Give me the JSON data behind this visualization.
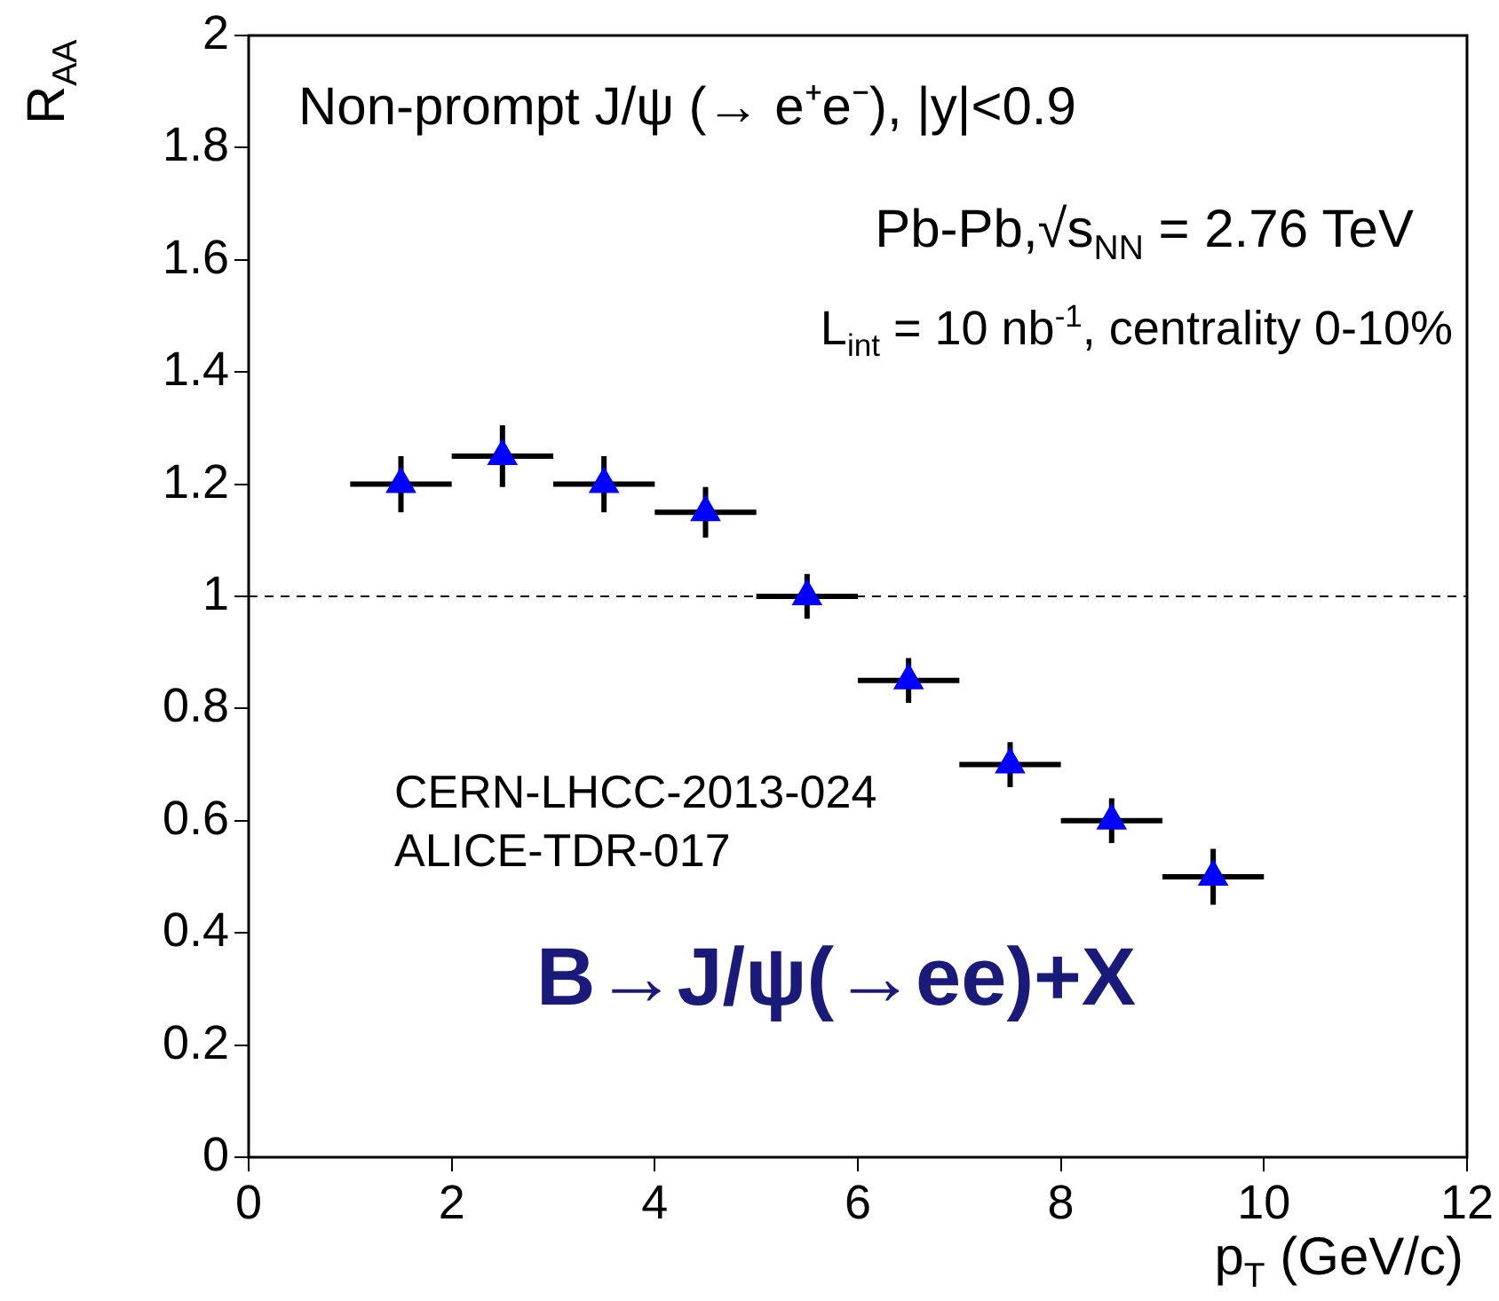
{
  "chart_data": {
    "type": "scatter",
    "title": "Non-prompt J/ψ (→ e⁺e⁻), |y|<0.9",
    "xlabel": "p$_{T}$ (GeV/c)",
    "ylabel": "R$_{AA}$",
    "annotations": [
      "Pb-Pb,√s$_{NN}$ = 2.76 TeV",
      "L$_{int}$ = 10 nb$^{-1}$, centrality 0-10%",
      "CERN-LHCC-2013-024",
      "ALICE-TDR-017",
      "B→J/ψ(→ee)+X"
    ],
    "x": [
      1.5,
      2.5,
      3.5,
      4.5,
      5.5,
      6.5,
      7.5,
      8.5,
      9.5
    ],
    "values": [
      1.2,
      1.25,
      1.2,
      1.15,
      1.0,
      0.85,
      0.7,
      0.6,
      0.5
    ],
    "errors": [
      0.05,
      0.055,
      0.05,
      0.045,
      0.04,
      0.04,
      0.04,
      0.04,
      0.05
    ],
    "xerrors": [
      0.5,
      0.5,
      0.5,
      0.5,
      0.5,
      0.5,
      0.5,
      0.5,
      0.5
    ],
    "color": "#0000ff",
    "marker": "triangle",
    "xlim": [
      0,
      12
    ],
    "ylim": [
      0,
      2
    ],
    "xticks": [
      0,
      2,
      4,
      6,
      8,
      10,
      12
    ],
    "yticks": [
      0,
      0.2,
      0.4,
      0.6,
      0.8,
      1,
      1.2,
      1.4,
      1.6,
      1.8,
      2
    ],
    "ref_lines": [
      {
        "axis": "y",
        "value": 1,
        "line_style": "dashed"
      }
    ],
    "grid": false,
    "legend": false
  }
}
